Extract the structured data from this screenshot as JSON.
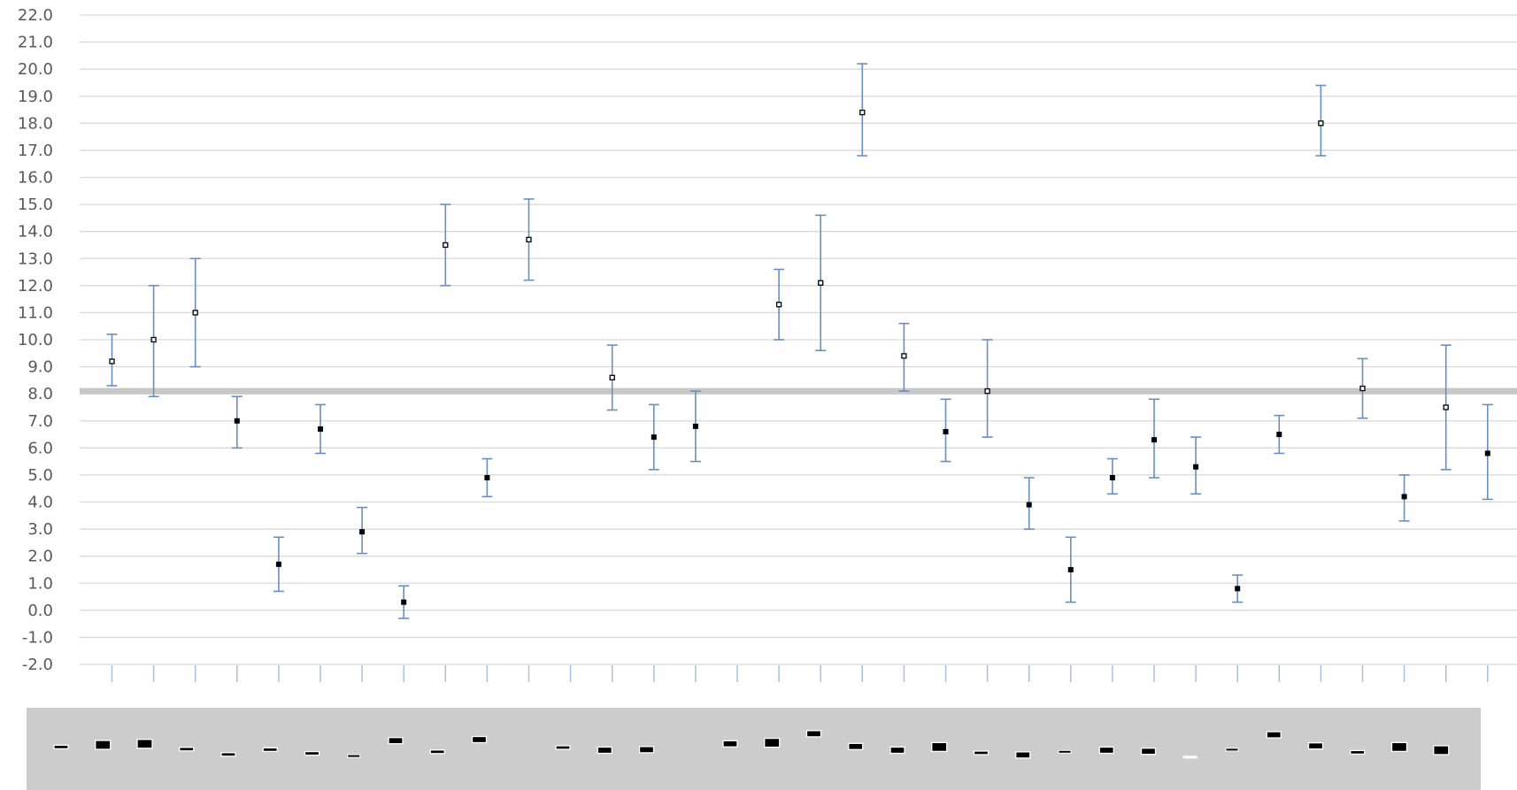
{
  "chart_data": {
    "type": "scatter",
    "title": "",
    "xlabel": "",
    "ylabel": "",
    "ylim": [
      -2,
      22
    ],
    "y_tick_step": 1,
    "y_tick_labels": [
      "-2.0",
      "-1.0",
      "0.0",
      "1.0",
      "2.0",
      "3.0",
      "4.0",
      "5.0",
      "6.0",
      "7.0",
      "8.0",
      "9.0",
      "10.0",
      "11.0",
      "12.0",
      "13.0",
      "14.0",
      "15.0",
      "16.0",
      "17.0",
      "18.0",
      "19.0",
      "20.0",
      "21.0",
      "22.0"
    ],
    "grid": true,
    "legend": "none",
    "reference_line": 8.1,
    "category_count": 34,
    "points": [
      {
        "value": 9.2,
        "low": 8.3,
        "high": 10.2,
        "marker": "hollow"
      },
      {
        "value": 10.0,
        "low": 7.9,
        "high": 12.0,
        "marker": "hollow"
      },
      {
        "value": 11.0,
        "low": 9.0,
        "high": 13.0,
        "marker": "hollow"
      },
      {
        "value": 7.0,
        "low": 6.0,
        "high": 7.9,
        "marker": "filled"
      },
      {
        "value": 1.7,
        "low": 0.7,
        "high": 2.7,
        "marker": "filled"
      },
      {
        "value": 6.7,
        "low": 5.8,
        "high": 7.6,
        "marker": "filled"
      },
      {
        "value": 2.9,
        "low": 2.1,
        "high": 3.8,
        "marker": "filled"
      },
      {
        "value": 0.3,
        "low": -0.3,
        "high": 0.9,
        "marker": "filled"
      },
      {
        "value": 13.5,
        "low": 12.0,
        "high": 15.0,
        "marker": "hollow"
      },
      {
        "value": 4.9,
        "low": 4.2,
        "high": 5.6,
        "marker": "filled"
      },
      {
        "value": 13.7,
        "low": 12.2,
        "high": 15.2,
        "marker": "hollow"
      },
      null,
      {
        "value": 8.6,
        "low": 7.4,
        "high": 9.8,
        "marker": "hollow"
      },
      {
        "value": 6.4,
        "low": 5.2,
        "high": 7.6,
        "marker": "filled"
      },
      {
        "value": 6.8,
        "low": 5.5,
        "high": 8.1,
        "marker": "filled"
      },
      null,
      {
        "value": 11.3,
        "low": 10.0,
        "high": 12.6,
        "marker": "hollow"
      },
      {
        "value": 12.1,
        "low": 9.6,
        "high": 14.6,
        "marker": "hollow"
      },
      {
        "value": 18.4,
        "low": 16.8,
        "high": 20.2,
        "marker": "hollow"
      },
      {
        "value": 9.4,
        "low": 8.1,
        "high": 10.6,
        "marker": "hollow"
      },
      {
        "value": 6.6,
        "low": 5.5,
        "high": 7.8,
        "marker": "filled"
      },
      {
        "value": 8.1,
        "low": 6.4,
        "high": 10.0,
        "marker": "hollow"
      },
      {
        "value": 3.9,
        "low": 3.0,
        "high": 4.9,
        "marker": "filled"
      },
      {
        "value": 1.5,
        "low": 0.3,
        "high": 2.7,
        "marker": "filled"
      },
      {
        "value": 4.9,
        "low": 4.3,
        "high": 5.6,
        "marker": "filled"
      },
      {
        "value": 6.3,
        "low": 4.9,
        "high": 7.8,
        "marker": "filled"
      },
      {
        "value": 5.3,
        "low": 4.3,
        "high": 6.4,
        "marker": "filled"
      },
      {
        "value": 0.8,
        "low": 0.3,
        "high": 1.3,
        "marker": "filled"
      },
      {
        "value": 6.5,
        "low": 5.8,
        "high": 7.2,
        "marker": "filled"
      },
      {
        "value": 18.0,
        "low": 16.8,
        "high": 19.4,
        "marker": "hollow"
      },
      {
        "value": 8.2,
        "low": 7.1,
        "high": 9.3,
        "marker": "hollow"
      },
      {
        "value": 4.2,
        "low": 3.3,
        "high": 5.0,
        "marker": "filled"
      },
      {
        "value": 7.5,
        "low": 5.2,
        "high": 9.8,
        "marker": "hollow"
      },
      {
        "value": 5.8,
        "low": 4.1,
        "high": 7.6,
        "marker": "filled"
      }
    ],
    "legend_strip": {
      "background": "#cccccc",
      "swatches": [
        {
          "level": 0.3,
          "weight": "thin"
        },
        {
          "level": 0.5,
          "weight": "bold"
        },
        {
          "level": 0.6,
          "weight": "bold"
        },
        {
          "level": 0.1,
          "weight": "thin"
        },
        {
          "level": -0.4,
          "weight": "thin"
        },
        {
          "level": 0.05,
          "weight": "thin"
        },
        {
          "level": -0.3,
          "weight": "thin"
        },
        {
          "level": -0.55,
          "weight": "hairline"
        },
        {
          "level": 0.9,
          "weight": "medium"
        },
        {
          "level": -0.15,
          "weight": "thin"
        },
        {
          "level": 1.0,
          "weight": "medium"
        },
        null,
        {
          "level": 0.25,
          "weight": "thin"
        },
        {
          "level": 0.0,
          "weight": "medium"
        },
        {
          "level": 0.05,
          "weight": "medium"
        },
        null,
        {
          "level": 0.6,
          "weight": "medium"
        },
        {
          "level": 0.7,
          "weight": "bold"
        },
        {
          "level": 1.55,
          "weight": "medium"
        },
        {
          "level": 0.35,
          "weight": "medium"
        },
        {
          "level": 0.0,
          "weight": "medium"
        },
        {
          "level": 0.3,
          "weight": "bold"
        },
        {
          "level": -0.25,
          "weight": "thin"
        },
        {
          "level": -0.45,
          "weight": "medium"
        },
        {
          "level": -0.15,
          "weight": "hairline"
        },
        {
          "level": 0.0,
          "weight": "medium"
        },
        {
          "level": -0.1,
          "weight": "medium"
        },
        {
          "level": -0.65,
          "weight": "hairline-light"
        },
        {
          "level": 0.05,
          "weight": "hairline"
        },
        {
          "level": 1.45,
          "weight": "medium"
        },
        {
          "level": 0.4,
          "weight": "medium"
        },
        {
          "level": -0.2,
          "weight": "thin"
        },
        {
          "level": 0.3,
          "weight": "bold"
        },
        {
          "level": 0.0,
          "weight": "bold"
        }
      ]
    }
  },
  "colors": {
    "gridline": "#d9d9d9",
    "axis_text": "#595959",
    "error_bar": "#6a8fbf",
    "category_tick": "#a9c0dc",
    "reference_line": "#c8c8c8",
    "marker": "#000000",
    "legend_strip": "#cccccc"
  }
}
